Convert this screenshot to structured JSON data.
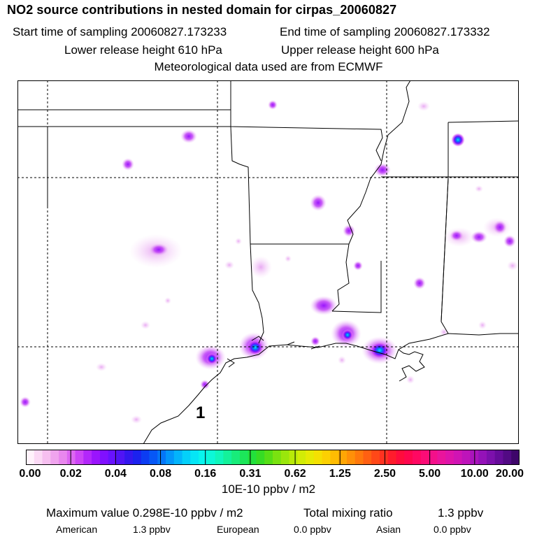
{
  "header": {
    "title": "NO2 source contributions in nested domain for cirpas_20060827",
    "start_label": "Start time of sampling 20060827.173233",
    "end_label": "End time of sampling 20060827.173332",
    "lower_label": "Lower release height  610 hPa",
    "upper_label": "Upper release height  600 hPa",
    "met_label": "Meteorological data used are from ECMWF"
  },
  "map": {
    "domain_label": "1",
    "colors": {
      "coast": "#000000",
      "state_lines": "#000000",
      "grid_lines": "#000000"
    }
  },
  "colorbar": {
    "ticks": [
      "0.00",
      "0.02",
      "0.04",
      "0.08",
      "0.16",
      "0.31",
      "0.62",
      "1.25",
      "2.50",
      "5.00",
      "10.00",
      "20.00"
    ],
    "colors": [
      "#fff2fb",
      "#fbd9f5",
      "#f6bff0",
      "#f0a4ee",
      "#e987ee",
      "#dd66f2",
      "#cc44f6",
      "#b327fb",
      "#9a14fd",
      "#8010ff",
      "#6812ff",
      "#5014f5",
      "#3317ee",
      "#1b22ee",
      "#0c3cf2",
      "#0657f6",
      "#0476f8",
      "#0396fa",
      "#03b4fb",
      "#04d0fa",
      "#05e6f6",
      "#08f5ee",
      "#0cf8d8",
      "#10f6bb",
      "#14f19a",
      "#18ec7a",
      "#1ce65a",
      "#22e03c",
      "#36dc24",
      "#56de16",
      "#7ae210",
      "#9ae60c",
      "#b8ea08",
      "#d2ec06",
      "#e6ea04",
      "#f4e002",
      "#fcd002",
      "#ffbc02",
      "#ffa604",
      "#ff9008",
      "#ff780c",
      "#ff6012",
      "#ff4818",
      "#ff3220",
      "#ff1c2c",
      "#ff0c3c",
      "#ff064e",
      "#ff0862",
      "#fc0c76",
      "#f4108a",
      "#ea149c",
      "#de14aa",
      "#d014b4",
      "#be14ba",
      "#aa14bc",
      "#9412b8",
      "#7c10ac",
      "#660c9a",
      "#520a84",
      "#3e066a"
    ]
  },
  "units_label": "10E-10 ppbv / m2",
  "summary": {
    "max_label": "Maximum value  0.298E-10 ppbv / m2",
    "total_label": "Total mixing ratio",
    "total_value": "1.3 ppbv"
  },
  "contributions": {
    "american_label": "American",
    "american_value": "1.3 ppbv",
    "european_label": "European",
    "european_value": "0.0 ppbv",
    "asian_label": "Asian",
    "asian_value": "0.0 ppbv"
  }
}
